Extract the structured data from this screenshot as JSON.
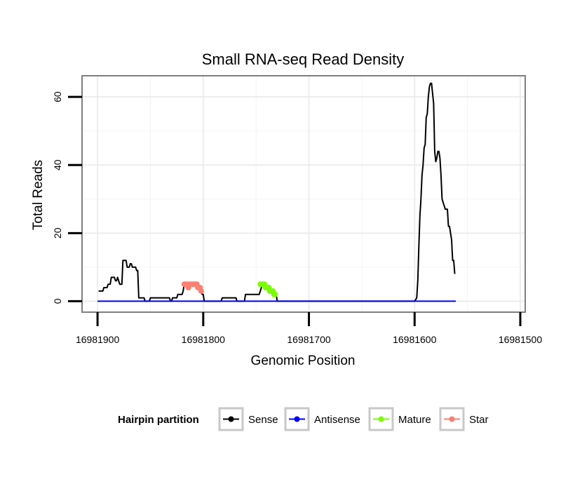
{
  "chart_data": {
    "type": "line",
    "title": "Small RNA-seq Read Density",
    "xlabel": "Genomic Position",
    "ylabel": "Total Reads",
    "xlim": [
      16981914,
      16981496
    ],
    "ylim": [
      -3,
      66
    ],
    "x_reversed": true,
    "grid": true,
    "x_ticks": [
      16981900,
      16981800,
      16981700,
      16981600,
      16981500
    ],
    "x_tick_labels": [
      "16981900",
      "16981800",
      "16981700",
      "16981600",
      "16981500"
    ],
    "y_ticks": [
      0,
      20,
      40,
      60
    ],
    "y_tick_labels": [
      "0",
      "20",
      "40",
      "60"
    ],
    "legend": {
      "title": "Hairpin partition",
      "position": "bottom",
      "entries": [
        {
          "label": "Sense",
          "color": "#000000"
        },
        {
          "label": "Antisense",
          "color": "#0000ff"
        },
        {
          "label": "Mature",
          "color": "#7cfc00"
        },
        {
          "label": "Star",
          "color": "#fa8072"
        }
      ]
    },
    "series": [
      {
        "name": "Sense",
        "color": "#000000",
        "style": "line",
        "points": [
          [
            16981899,
            3
          ],
          [
            16981895,
            3
          ],
          [
            16981894,
            4
          ],
          [
            16981891,
            4
          ],
          [
            16981890,
            5
          ],
          [
            16981888,
            5
          ],
          [
            16981887,
            7
          ],
          [
            16981884,
            7
          ],
          [
            16981883,
            6
          ],
          [
            16981882,
            6
          ],
          [
            16981881,
            7
          ],
          [
            16981880,
            6
          ],
          [
            16981879,
            5
          ],
          [
            16981877,
            5
          ],
          [
            16981876,
            12
          ],
          [
            16981873,
            12
          ],
          [
            16981872,
            10
          ],
          [
            16981870,
            10
          ],
          [
            16981869,
            11
          ],
          [
            16981868,
            11
          ],
          [
            16981867,
            10
          ],
          [
            16981864,
            10
          ],
          [
            16981863,
            9
          ],
          [
            16981862,
            9
          ],
          [
            16981861,
            1
          ],
          [
            16981856,
            1
          ],
          [
            16981855,
            0
          ],
          [
            16981851,
            0
          ],
          [
            16981850,
            1
          ],
          [
            16981832,
            1
          ],
          [
            16981831,
            0
          ],
          [
            16981830,
            0
          ],
          [
            16981829,
            1
          ],
          [
            16981825,
            1
          ],
          [
            16981824,
            2
          ],
          [
            16981820,
            2
          ],
          [
            16981819,
            3
          ],
          [
            16981818,
            5
          ],
          [
            16981815,
            5
          ],
          [
            16981814,
            4
          ],
          [
            16981813,
            5
          ],
          [
            16981806,
            5
          ],
          [
            16981805,
            4
          ],
          [
            16981803,
            4
          ],
          [
            16981802,
            3
          ],
          [
            16981801,
            2
          ],
          [
            16981800,
            2
          ],
          [
            16981799,
            0
          ],
          [
            16981783,
            0
          ],
          [
            16981782,
            1
          ],
          [
            16981769,
            1
          ],
          [
            16981768,
            0
          ],
          [
            16981761,
            0
          ],
          [
            16981760,
            2
          ],
          [
            16981747,
            2
          ],
          [
            16981746,
            3
          ],
          [
            16981745,
            4
          ],
          [
            16981744,
            5
          ],
          [
            16981741,
            5
          ],
          [
            16981740,
            4
          ],
          [
            16981738,
            4
          ],
          [
            16981737,
            3
          ],
          [
            16981733,
            3
          ],
          [
            16981732,
            2
          ],
          [
            16981731,
            2
          ],
          [
            16981730,
            0
          ],
          [
            16981600,
            0
          ],
          [
            16981598,
            1
          ],
          [
            16981597,
            6
          ],
          [
            16981596,
            16
          ],
          [
            16981595,
            25
          ],
          [
            16981594,
            30
          ],
          [
            16981593,
            37
          ],
          [
            16981592,
            40
          ],
          [
            16981591,
            45
          ],
          [
            16981590,
            46
          ],
          [
            16981589,
            54
          ],
          [
            16981588,
            55
          ],
          [
            16981587,
            60
          ],
          [
            16981586,
            63
          ],
          [
            16981585,
            64
          ],
          [
            16981584,
            64
          ],
          [
            16981583,
            61
          ],
          [
            16981582,
            58
          ],
          [
            16981581,
            44
          ],
          [
            16981580,
            41
          ],
          [
            16981579,
            42
          ],
          [
            16981578,
            44
          ],
          [
            16981577,
            44
          ],
          [
            16981576,
            42
          ],
          [
            16981575,
            37
          ],
          [
            16981574,
            30
          ],
          [
            16981573,
            29
          ],
          [
            16981572,
            28
          ],
          [
            16981571,
            27
          ],
          [
            16981569,
            27
          ],
          [
            16981568,
            22
          ],
          [
            16981567,
            22
          ],
          [
            16981566,
            20
          ],
          [
            16981565,
            18
          ],
          [
            16981564,
            12
          ],
          [
            16981563,
            12
          ],
          [
            16981562,
            8
          ]
        ]
      },
      {
        "name": "Antisense",
        "color": "#0000ff",
        "style": "line",
        "points": [
          [
            16981900,
            0
          ],
          [
            16981561,
            0
          ]
        ]
      },
      {
        "name": "Mature",
        "color": "#7cfc00",
        "style": "dots",
        "points": [
          [
            16981746,
            5
          ],
          [
            16981745,
            5
          ],
          [
            16981744,
            5
          ],
          [
            16981743,
            5
          ],
          [
            16981742,
            5
          ],
          [
            16981741,
            4
          ],
          [
            16981740,
            4
          ],
          [
            16981739,
            4
          ],
          [
            16981738,
            4
          ],
          [
            16981737,
            3
          ],
          [
            16981736,
            3
          ],
          [
            16981735,
            3
          ],
          [
            16981734,
            3
          ],
          [
            16981733,
            2
          ],
          [
            16981732,
            2
          ]
        ]
      },
      {
        "name": "Star",
        "color": "#fa8072",
        "style": "dots",
        "points": [
          [
            16981818,
            5
          ],
          [
            16981817,
            5
          ],
          [
            16981816,
            5
          ],
          [
            16981815,
            5
          ],
          [
            16981814,
            4
          ],
          [
            16981813,
            5
          ],
          [
            16981812,
            5
          ],
          [
            16981811,
            5
          ],
          [
            16981810,
            5
          ],
          [
            16981809,
            5
          ],
          [
            16981808,
            5
          ],
          [
            16981807,
            5
          ],
          [
            16981806,
            5
          ],
          [
            16981805,
            4
          ],
          [
            16981804,
            4
          ],
          [
            16981803,
            4
          ],
          [
            16981802,
            3
          ]
        ]
      }
    ]
  }
}
